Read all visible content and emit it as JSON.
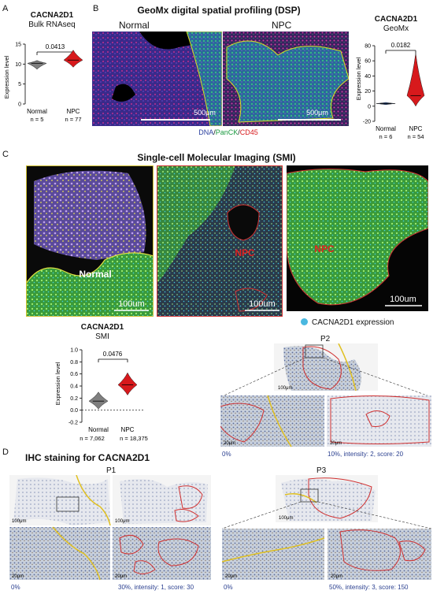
{
  "panel_letters": {
    "a": "A",
    "b": "B",
    "c": "C",
    "d": "D"
  },
  "panelA": {
    "gene": "CACNA2D1",
    "method": "Bulk RNAseq",
    "pvalue": "0.0413",
    "ylabel": "Expression level",
    "groups": [
      {
        "name": "Normal",
        "n": "n = 5"
      },
      {
        "name": "NPC",
        "n": "n = 77"
      }
    ]
  },
  "panelB": {
    "title": "GeoMx digital spatial profiling (DSP)",
    "left_label": "Normal",
    "right_label": "NPC",
    "scale": "500μm",
    "stain_dna": "DNA",
    "stain_sep1": "/",
    "stain_panck": "PanCK",
    "stain_sep2": "/",
    "stain_cd45": "CD45",
    "gene": "CACNA2D1",
    "method": "GeoMx",
    "pvalue": "0.0182",
    "ylabel": "Expression level",
    "groups": [
      {
        "name": "Normal",
        "n": "n = 6"
      },
      {
        "name": "NPC",
        "n": "n = 54"
      }
    ]
  },
  "panelC": {
    "title": "Single-cell Molecular Imaging (SMI)",
    "img1_label": "Normal",
    "img2_label": "NPC",
    "img3_label": "NPC",
    "scale": "100um",
    "legend": "CACNA2D1 expression",
    "gene": "CACNA2D1",
    "method": "SMI",
    "pvalue": "0.0476",
    "ylabel": "Expression level",
    "groups": [
      {
        "name": "Normal",
        "n": "n = 7,062"
      },
      {
        "name": "NPC",
        "n": "n = 18,375"
      }
    ],
    "p2_title": "P2",
    "p2_left": "0%",
    "p2_right": "10%, intensity: 2, score: 20"
  },
  "panelD": {
    "title": "IHC staining for CACNA2D1",
    "p1_title": "P1",
    "p1_left": "0%",
    "p1_right": "30%, intensity: 1, score: 30",
    "p3_title": "P3",
    "p3_left": "0%",
    "p3_right": "50%, intensity: 3, score: 150"
  },
  "chart_data": [
    {
      "type": "violin",
      "title": "CACNA2D1",
      "subtitle": "Bulk RNAseq",
      "categories": [
        "Normal",
        "NPC"
      ],
      "ylabel": "Expression level",
      "ylim": [
        0,
        15
      ],
      "yticks": [
        0,
        5,
        10,
        15
      ],
      "medians": [
        10.2,
        11.0
      ],
      "ranges": [
        [
          8.7,
          10.9
        ],
        [
          9.2,
          13.5
        ]
      ],
      "pvalue": "0.0413",
      "colors": [
        "#7f7f7f",
        "#d7191c"
      ]
    },
    {
      "type": "violin",
      "title": "CACNA2D1",
      "subtitle": "GeoMx",
      "categories": [
        "Normal",
        "NPC"
      ],
      "ylabel": "Expression level",
      "ylim": [
        -20,
        80
      ],
      "yticks": [
        -20,
        0,
        20,
        40,
        60,
        80
      ],
      "medians": [
        3.5,
        14
      ],
      "ranges": [
        [
          2,
          5
        ],
        [
          0,
          70
        ]
      ],
      "pvalue": "0.0182",
      "colors": [
        "#3a5fa0",
        "#d7191c"
      ]
    },
    {
      "type": "violin",
      "title": "CACNA2D1",
      "subtitle": "SMI",
      "categories": [
        "Normal",
        "NPC"
      ],
      "ylabel": "Expression level",
      "ylim": [
        -0.2,
        1.0
      ],
      "yticks": [
        -0.2,
        0.0,
        0.2,
        0.4,
        0.6,
        0.8,
        1.0
      ],
      "medians": [
        0.15,
        0.42
      ],
      "ranges": [
        [
          0.02,
          0.3
        ],
        [
          0.25,
          0.62
        ]
      ],
      "pvalue": "0.0476",
      "colors": [
        "#7f7f7f",
        "#d7191c"
      ]
    }
  ]
}
